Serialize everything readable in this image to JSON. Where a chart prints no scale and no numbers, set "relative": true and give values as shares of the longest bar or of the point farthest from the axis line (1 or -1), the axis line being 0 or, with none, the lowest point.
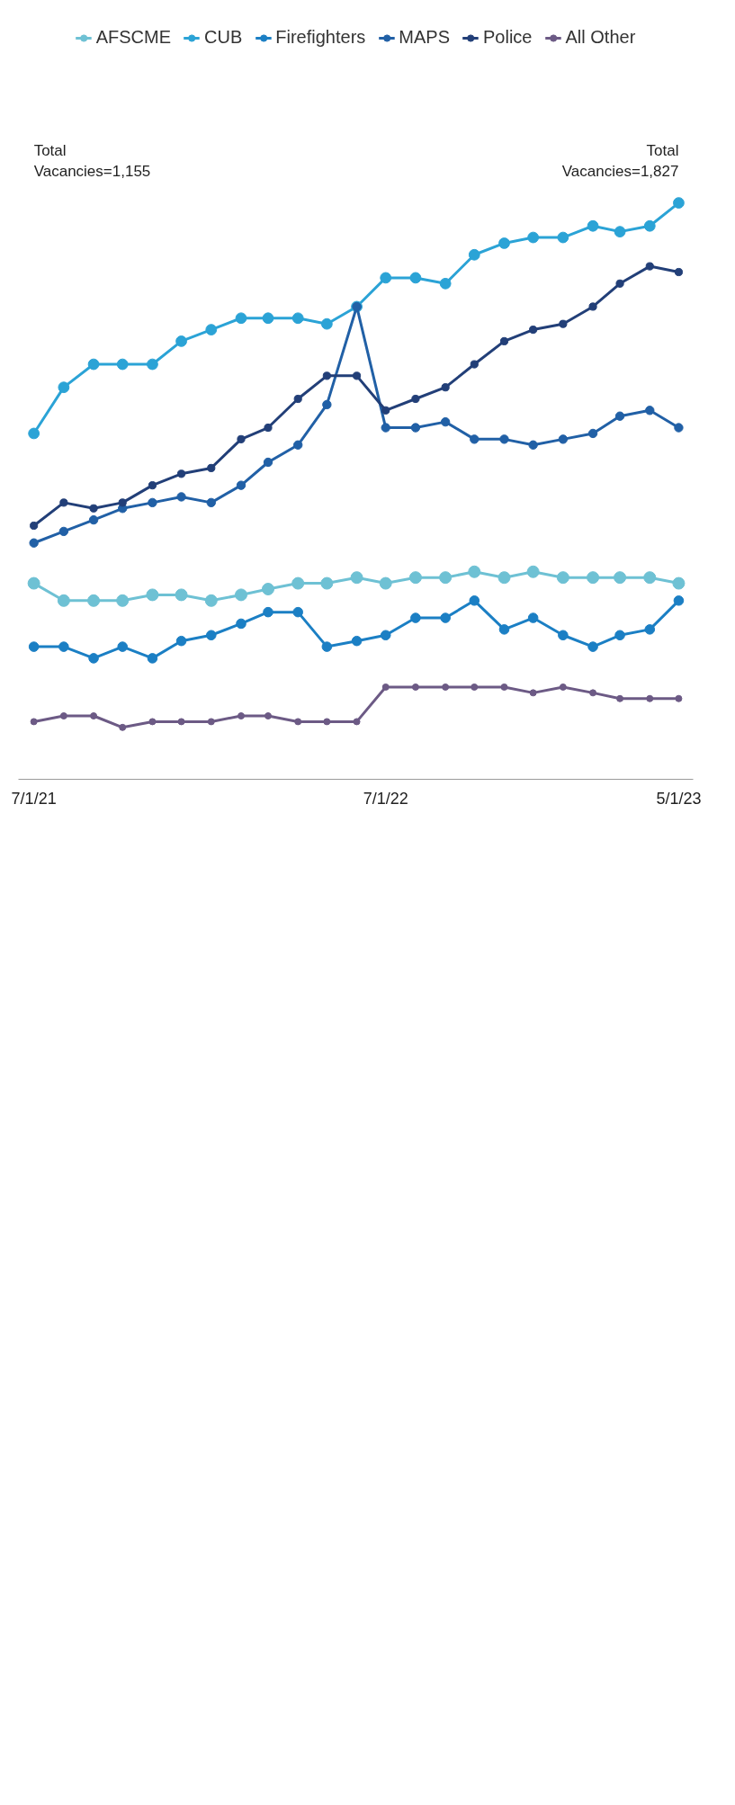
{
  "chart_data": {
    "type": "line",
    "relative": true,
    "marker": "circle",
    "legend": "top",
    "x": [
      "2021-07-01",
      "2021-08-01",
      "2021-09-01",
      "2021-10-01",
      "2021-11-01",
      "2021-12-01",
      "2022-01-01",
      "2022-02-01",
      "2022-03-01",
      "2022-04-01",
      "2022-05-01",
      "2022-06-01",
      "2022-07-01",
      "2022-08-01",
      "2022-09-01",
      "2022-10-01",
      "2022-11-01",
      "2022-12-01",
      "2023-01-01",
      "2023-02-01",
      "2023-03-01",
      "2023-04-01",
      "2023-05-01"
    ],
    "xlim": [
      "2021-06-15",
      "2023-05-16"
    ],
    "xticks": [
      {
        "value": "2021-07-01",
        "label": "7/1/21"
      },
      {
        "value": "2022-07-01",
        "label": "7/1/22"
      },
      {
        "value": "2023-05-01",
        "label": "5/1/23"
      }
    ],
    "series": [
      {
        "name": "AFSCME",
        "color": "#6ec1d4",
        "values": [
          0.34,
          0.31,
          0.31,
          0.31,
          0.32,
          0.32,
          0.31,
          0.32,
          0.33,
          0.34,
          0.34,
          0.35,
          0.34,
          0.35,
          0.35,
          0.36,
          0.35,
          0.36,
          0.35,
          0.35,
          0.35,
          0.35,
          0.34
        ]
      },
      {
        "name": "CUB",
        "color": "#2ba3d6",
        "values": [
          0.6,
          0.68,
          0.72,
          0.72,
          0.72,
          0.76,
          0.78,
          0.8,
          0.8,
          0.8,
          0.79,
          0.82,
          0.87,
          0.87,
          0.86,
          0.91,
          0.93,
          0.94,
          0.94,
          0.96,
          0.95,
          0.96,
          1.0
        ]
      },
      {
        "name": "Firefighters",
        "color": "#1b7fc4",
        "values": [
          0.23,
          0.23,
          0.21,
          0.23,
          0.21,
          0.24,
          0.25,
          0.27,
          0.29,
          0.29,
          0.23,
          0.24,
          0.25,
          0.28,
          0.28,
          0.31,
          0.26,
          0.28,
          0.25,
          0.23,
          0.25,
          0.26,
          0.31
        ]
      },
      {
        "name": "MAPS",
        "color": "#2160a6",
        "values": [
          0.41,
          0.43,
          0.45,
          0.47,
          0.48,
          0.49,
          0.48,
          0.51,
          0.55,
          0.58,
          0.65,
          0.82,
          0.61,
          0.61,
          0.62,
          0.59,
          0.59,
          0.58,
          0.59,
          0.6,
          0.63,
          0.64,
          0.61
        ]
      },
      {
        "name": "Police",
        "color": "#223f78",
        "values": [
          0.44,
          0.48,
          0.47,
          0.48,
          0.51,
          0.53,
          0.54,
          0.59,
          0.61,
          0.66,
          0.7,
          0.7,
          0.64,
          0.66,
          0.68,
          0.72,
          0.76,
          0.78,
          0.79,
          0.82,
          0.86,
          0.89,
          0.88
        ]
      },
      {
        "name": "All Other",
        "color": "#6c5a85",
        "values": [
          0.1,
          0.11,
          0.11,
          0.09,
          0.1,
          0.1,
          0.1,
          0.11,
          0.11,
          0.1,
          0.1,
          0.1,
          0.16,
          0.16,
          0.16,
          0.16,
          0.16,
          0.15,
          0.16,
          0.15,
          0.14,
          0.14,
          0.14
        ]
      }
    ],
    "annotations": [
      "Total\nVacancies=1,155",
      "Total\nVacancies=1,827"
    ]
  }
}
